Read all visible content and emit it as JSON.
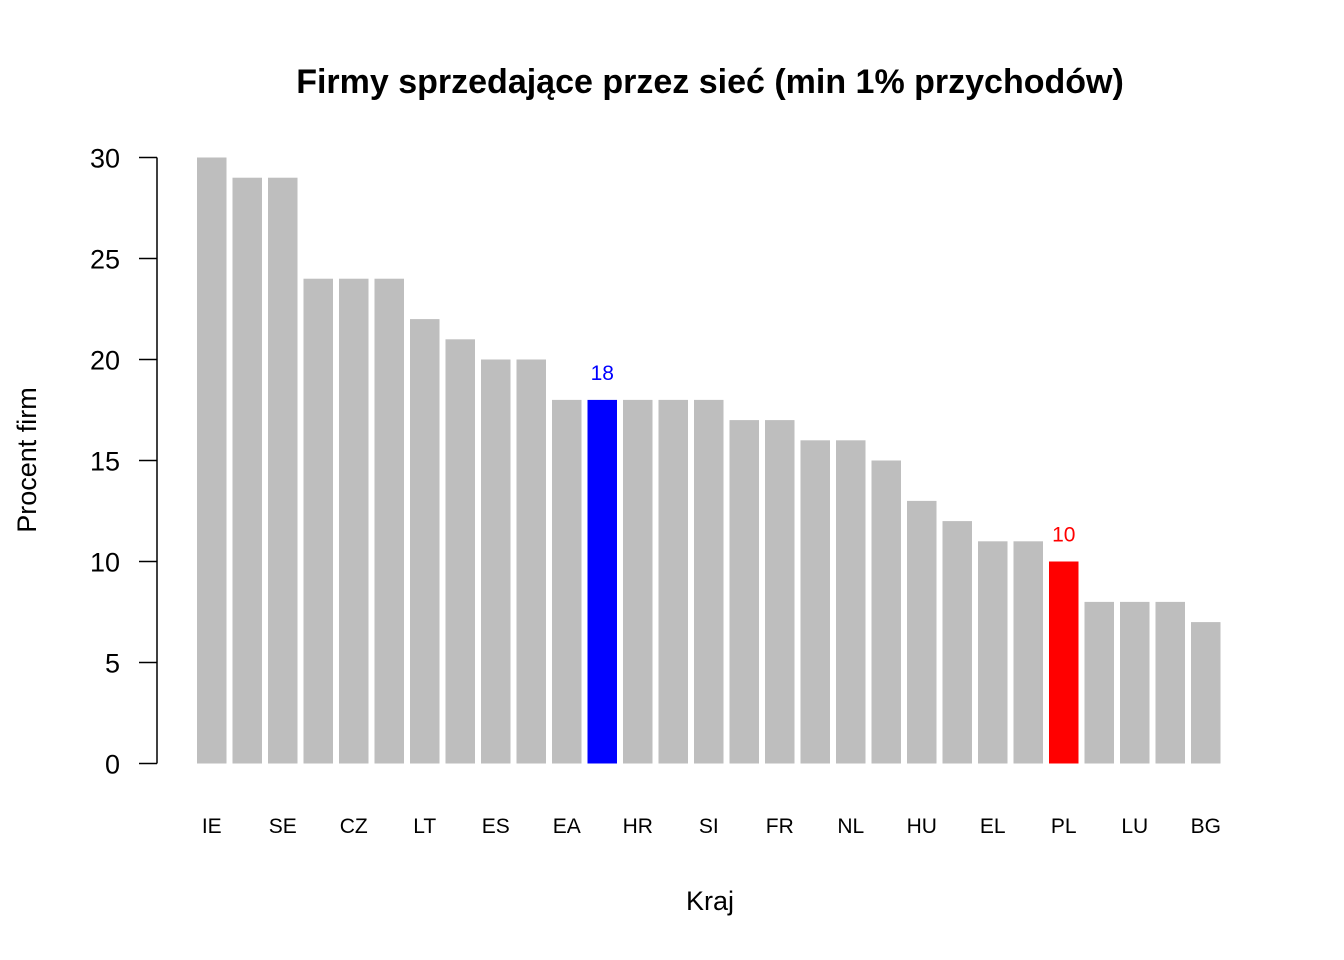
{
  "chart_data": {
    "type": "bar",
    "title": "Firmy sprzedające przez sieć (min 1% przychodów)",
    "xlabel": "Kraj",
    "ylabel": "Procent firm",
    "ylim": [
      0,
      30
    ],
    "yticks": [
      0,
      5,
      10,
      15,
      20,
      25,
      30
    ],
    "grid": false,
    "categories": [
      "IE",
      "",
      "SE",
      "",
      "CZ",
      "",
      "LT",
      "",
      "ES",
      "",
      "EA",
      "",
      "HR",
      "",
      "SI",
      "",
      "FR",
      "",
      "NL",
      "",
      "HU",
      "",
      "EL",
      "",
      "PL",
      "",
      "LU",
      "",
      "BG"
    ],
    "values": [
      30,
      29,
      29,
      24,
      24,
      24,
      22,
      21,
      20,
      20,
      18,
      18,
      18,
      18,
      18,
      17,
      17,
      16,
      16,
      15,
      13,
      12,
      11,
      11,
      10,
      8,
      8,
      8,
      7
    ],
    "default_color": "#bebebe",
    "highlights": [
      {
        "index": 11,
        "color": "#0000ff",
        "label": "18"
      },
      {
        "index": 24,
        "color": "#ff0000",
        "label": "10"
      }
    ]
  }
}
